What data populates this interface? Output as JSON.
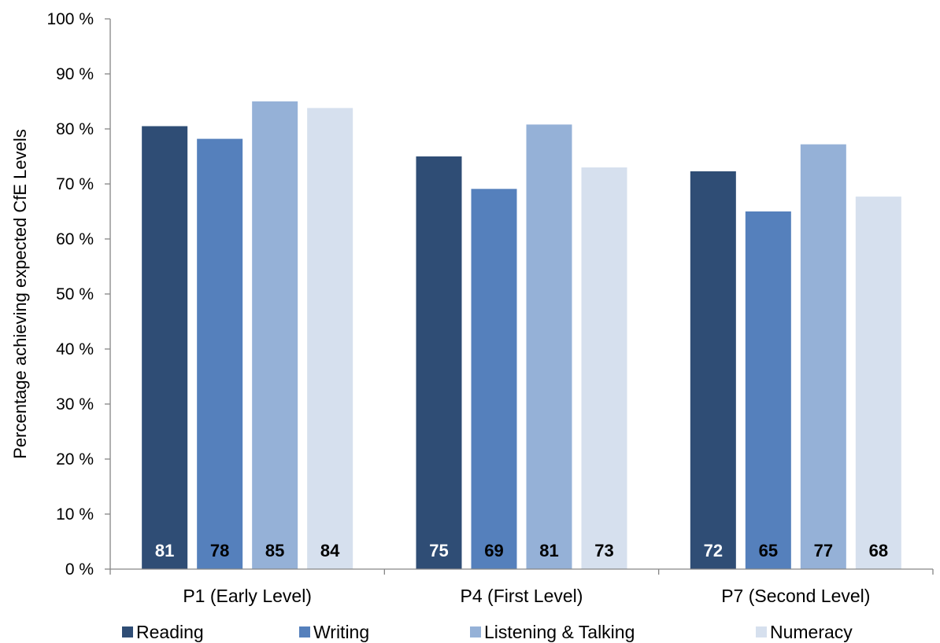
{
  "chart_data": {
    "type": "bar",
    "title": "",
    "ylabel": "Percentage achieving expected CfE  Levels",
    "xlabel": "",
    "ylim": [
      0,
      100
    ],
    "y_ticks": [
      0,
      10,
      20,
      30,
      40,
      50,
      60,
      70,
      80,
      90,
      100
    ],
    "y_tick_labels": [
      "0 %",
      "10 %",
      "20 %",
      "30 %",
      "40 %",
      "50 %",
      "60 %",
      "70 %",
      "80 %",
      "90 %",
      "100 %"
    ],
    "categories": [
      "P1 (Early Level)",
      "P4 (First Level)",
      "P7 (Second Level)"
    ],
    "series": [
      {
        "name": "Reading",
        "color": "#2f4d75",
        "label_color": "#ffffff",
        "values": [
          80.5,
          75,
          72.3
        ],
        "labels": [
          "81",
          "75",
          "72"
        ]
      },
      {
        "name": "Writing",
        "color": "#5580bc",
        "label_color": "#000000",
        "values": [
          78.2,
          69.1,
          65
        ],
        "labels": [
          "78",
          "69",
          "65"
        ]
      },
      {
        "name": "Listening & Talking",
        "color": "#95b1d7",
        "label_color": "#000000",
        "values": [
          85,
          80.8,
          77.2
        ],
        "labels": [
          "85",
          "81",
          "77"
        ]
      },
      {
        "name": "Numeracy",
        "color": "#d6e0ee",
        "label_color": "#000000",
        "values": [
          83.8,
          73,
          67.7
        ],
        "labels": [
          "84",
          "73",
          "68"
        ]
      }
    ],
    "grid": false,
    "legend_position": "bottom"
  }
}
